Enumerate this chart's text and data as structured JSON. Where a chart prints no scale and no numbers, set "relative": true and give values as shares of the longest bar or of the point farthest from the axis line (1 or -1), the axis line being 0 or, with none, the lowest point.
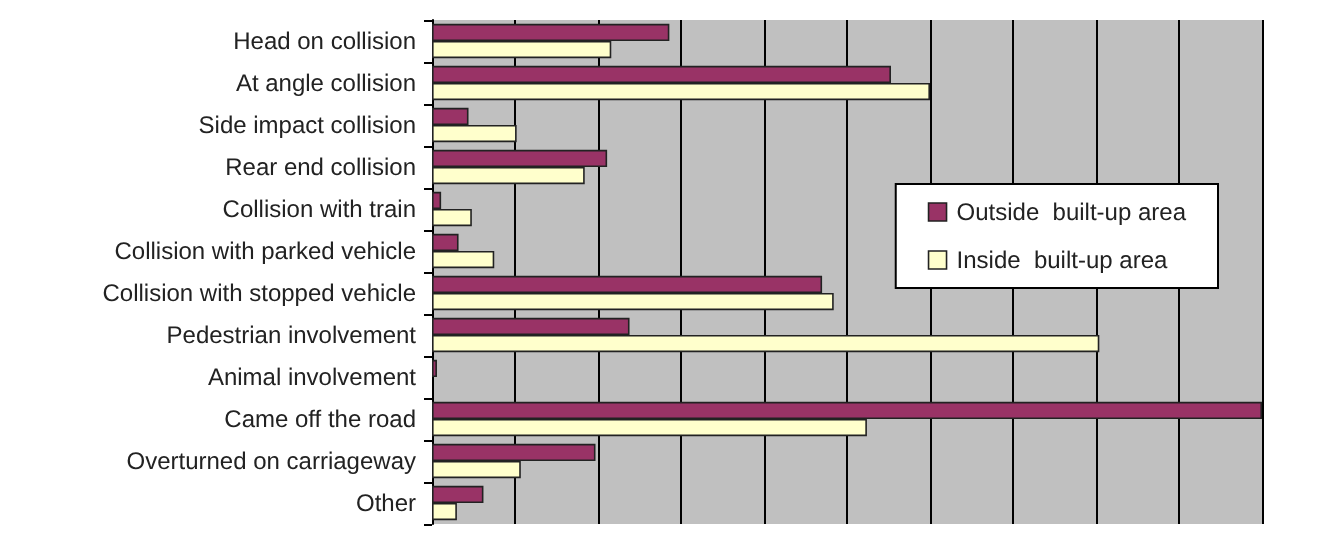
{
  "chart_data": {
    "type": "bar",
    "orientation": "horizontal",
    "relative": true,
    "grid": "x",
    "legend": "right",
    "categories": [
      "Head on collision",
      "At angle collision",
      "Side impact collision",
      "Rear end collision",
      "Collision with train",
      "Collision with parked vehicle",
      "Collision with stopped vehicle",
      "Pedestrian involvement",
      "Animal involvement",
      "Came off the road",
      "Overturned on carriageway",
      "Other"
    ],
    "series": [
      {
        "name": "Outside  built-up area",
        "color": "#993366",
        "values": [
          0.286,
          0.553,
          0.044,
          0.211,
          0.011,
          0.032,
          0.47,
          0.238,
          0.006,
          1,
          0.197,
          0.062
        ]
      },
      {
        "name": "Inside  built-up area",
        "color": "#ffffcc",
        "values": [
          0.216,
          0.6,
          0.102,
          0.184,
          0.048,
          0.075,
          0.484,
          0.804,
          0,
          0.524,
          0.107,
          0.03
        ]
      }
    ]
  }
}
